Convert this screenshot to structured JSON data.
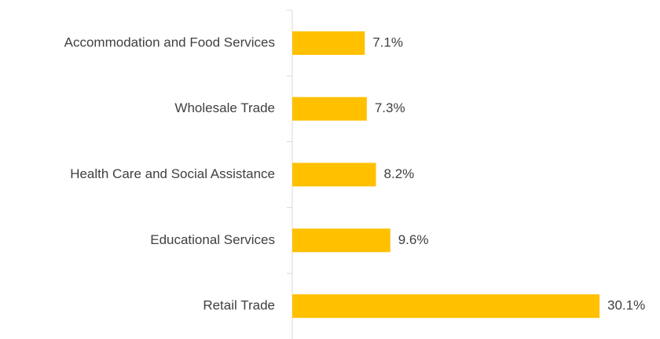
{
  "chart_data": {
    "type": "bar",
    "orientation": "horizontal",
    "categories": [
      "Accommodation and Food Services",
      "Wholesale Trade",
      "Health Care and Social Assistance",
      "Educational Services",
      "Retail Trade"
    ],
    "values": [
      7.1,
      7.3,
      8.2,
      9.6,
      30.1
    ],
    "value_labels": [
      "7.1%",
      "7.3%",
      "8.2%",
      "9.6%",
      "30.1%"
    ],
    "color": "#ffc000"
  }
}
